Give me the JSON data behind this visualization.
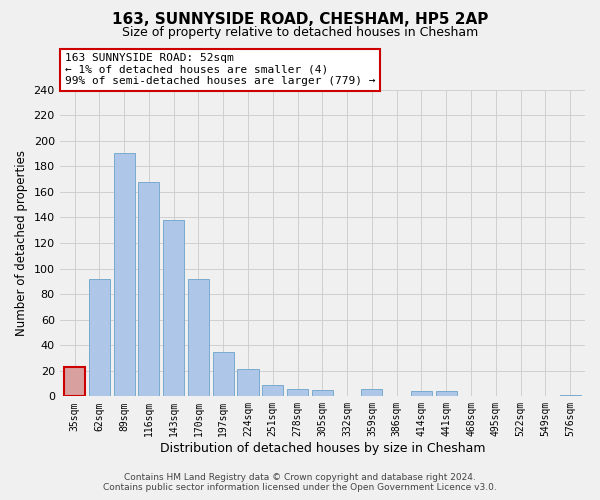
{
  "title": "163, SUNNYSIDE ROAD, CHESHAM, HP5 2AP",
  "subtitle": "Size of property relative to detached houses in Chesham",
  "xlabel": "Distribution of detached houses by size in Chesham",
  "ylabel": "Number of detached properties",
  "footer_line1": "Contains HM Land Registry data © Crown copyright and database right 2024.",
  "footer_line2": "Contains public sector information licensed under the Open Government Licence v3.0.",
  "bin_labels": [
    "35sqm",
    "62sqm",
    "89sqm",
    "116sqm",
    "143sqm",
    "170sqm",
    "197sqm",
    "224sqm",
    "251sqm",
    "278sqm",
    "305sqm",
    "332sqm",
    "359sqm",
    "386sqm",
    "414sqm",
    "441sqm",
    "468sqm",
    "495sqm",
    "522sqm",
    "549sqm",
    "576sqm"
  ],
  "bar_values": [
    23,
    92,
    190,
    168,
    138,
    92,
    35,
    21,
    9,
    6,
    5,
    0,
    6,
    0,
    4,
    4,
    0,
    0,
    0,
    0,
    1
  ],
  "bar_color": "#aec6e8",
  "highlight_bar_index": 0,
  "highlight_bar_color": "#d9a0a0",
  "highlight_outline_color": "#cc0000",
  "annotation_line1": "163 SUNNYSIDE ROAD: 52sqm",
  "annotation_line2": "← 1% of detached houses are smaller (4)",
  "annotation_line3": "99% of semi-detached houses are larger (779) →",
  "annotation_box_color": "#ffffff",
  "annotation_outline_color": "#cc0000",
  "ylim": [
    0,
    240
  ],
  "yticks": [
    0,
    20,
    40,
    60,
    80,
    100,
    120,
    140,
    160,
    180,
    200,
    220,
    240
  ],
  "grid_color": "#d0d0d0",
  "background_color": "#f0f0f0"
}
